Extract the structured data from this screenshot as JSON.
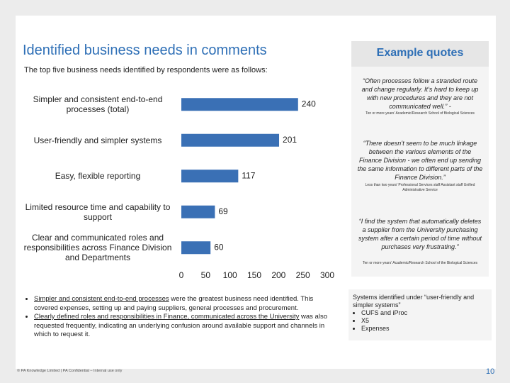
{
  "chart_data": {
    "type": "barh",
    "categories": [
      "Simpler and consistent end-to-end processes (total)",
      "User-friendly and simpler systems",
      "Easy, flexible reporting",
      "Limited resource time and capability to support",
      "Clear and communicated roles and responsibilities across Finance Division and Departments"
    ],
    "values": [
      240,
      201,
      117,
      69,
      60
    ],
    "color": "#3a70b5",
    "xlim": [
      0,
      300
    ],
    "xticks": [
      0,
      50,
      100,
      150,
      200,
      250,
      300
    ],
    "grid": false
  },
  "title": "Identified business needs  in comments",
  "subtitle": "The top five business needs identified by respondents were as follows:",
  "quotes_header": "Example quotes",
  "quotes": [
    {
      "text": "“Often processes follow a stranded route and change regularly. It’s hard to keep up with new procedures and they are not communicated well.” -",
      "source": "Ten or more years’ Academic/Research School of Biological Sciences"
    },
    {
      "text": "“There doesn’t seem to be much linkage between the various elements of the Finance Division - we often end up sending the same information to different parts of the Finance Division.”",
      "source": "Less than two years' Professional Services staff Assistant staff Unified Administrative Service"
    },
    {
      "text": "“I find the system that automatically deletes a supplier from the University purchasing system after a certain period of time without purchases very frustrating.”",
      "source": "Ten or more years’ Academic/Research School of the Biological Sciences"
    }
  ],
  "bullets": [
    {
      "underlined": "Simpler and consistent end-to-end processes",
      "rest": " were the greatest business need identified. This covered expenses, setting up and paying suppliers, general processes and procurement."
    },
    {
      "underlined": "Clearly defined roles and responsibilities in Finance, communicated across the University",
      "rest": " was also requested frequently, indicating an underlying confusion around available support and channels in which to request it."
    }
  ],
  "systems": {
    "heading": "Systems identified under “user-friendly and simpler systems”",
    "items": [
      "CUFS and iProc",
      "X5",
      "Expenses"
    ]
  },
  "footer": "© PA Knowledge Limited | PA Confidential – Internal use only",
  "page_number": "10"
}
